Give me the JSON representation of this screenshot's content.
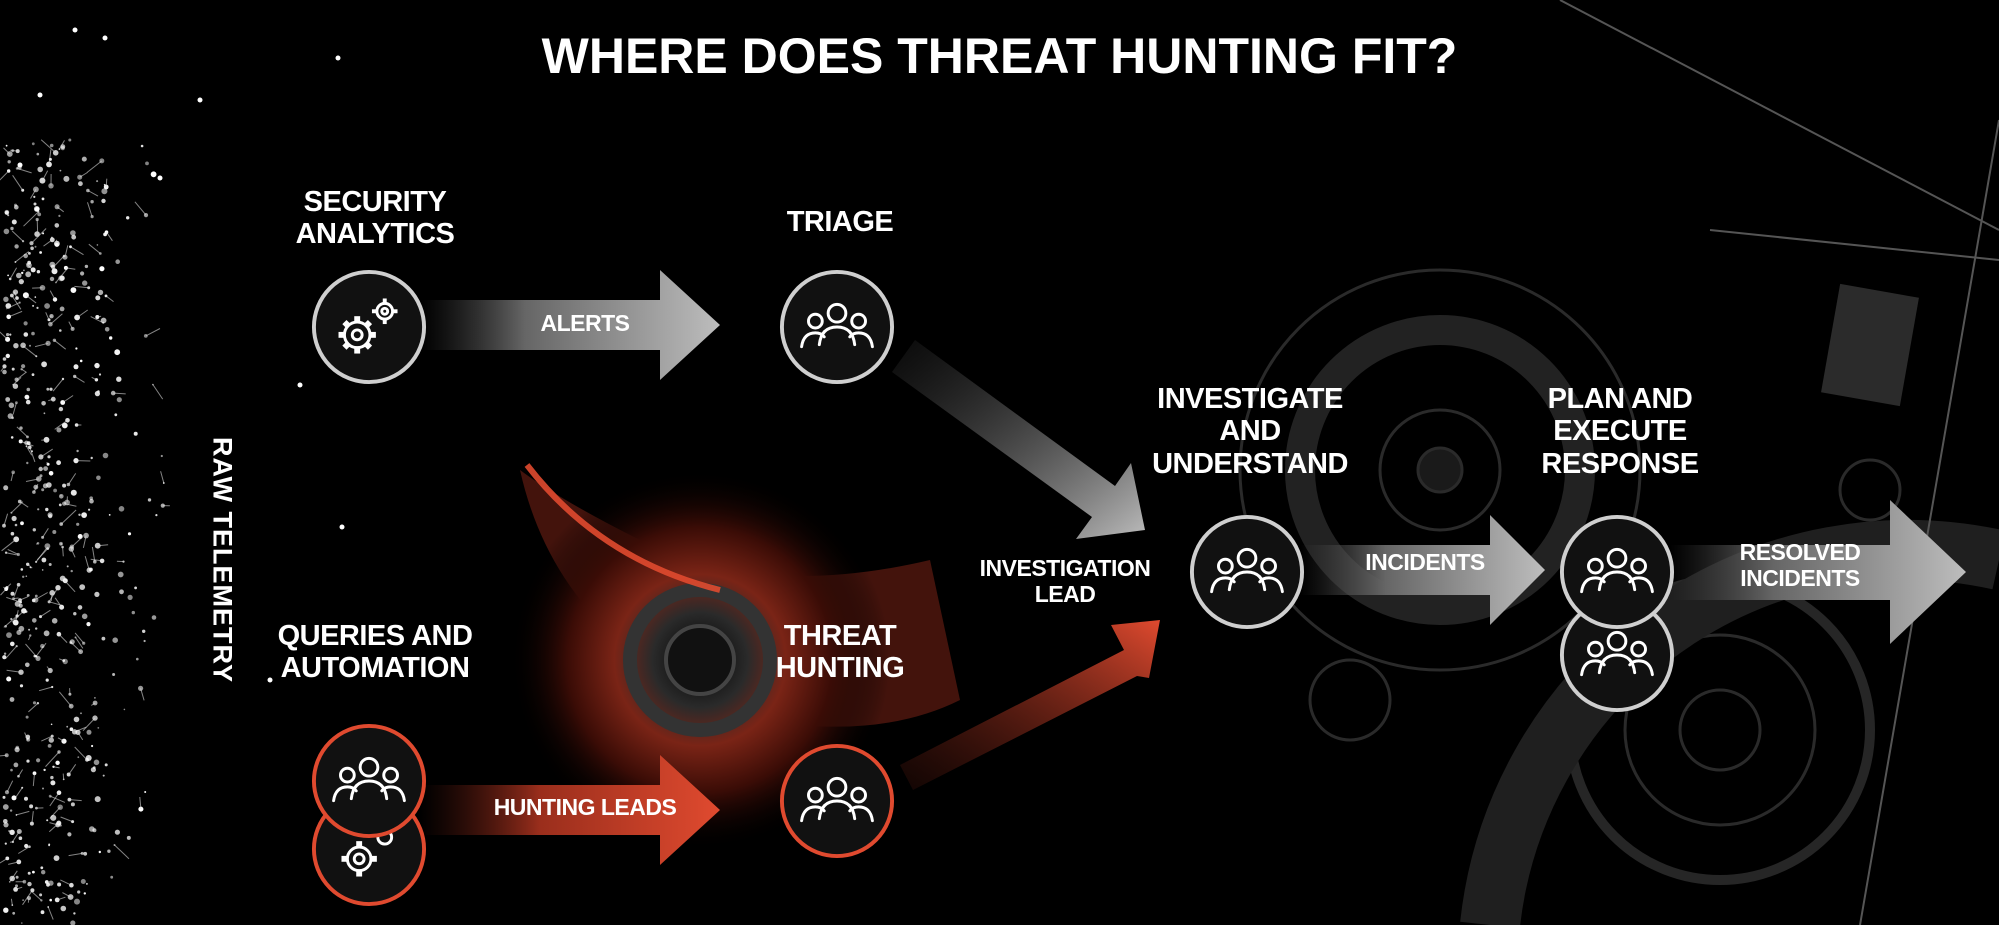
{
  "title": "WHERE DOES THREAT HUNTING FIT?",
  "side_label": "RAW TELEMETRY",
  "nodes": {
    "security_analytics": {
      "label": "SECURITY\nANALYTICS",
      "icon": "gears-icon"
    },
    "triage": {
      "label": "TRIAGE",
      "icon": "people-group-icon"
    },
    "queries_automation": {
      "label": "QUERIES AND\nAUTOMATION",
      "icon": "people-group-icon"
    },
    "threat_hunting": {
      "label": "THREAT\nHUNTING",
      "icon": "people-group-icon"
    },
    "investigate": {
      "label": "INVESTIGATE\nAND\nUNDERSTAND",
      "icon": "people-group-icon"
    },
    "plan_execute": {
      "label": "PLAN AND\nEXECUTE\nRESPONSE",
      "icon": "people-group-icon"
    }
  },
  "arrows": {
    "alerts": "ALERTS",
    "hunting_leads": "HUNTING LEADS",
    "investigation_lead": "INVESTIGATION\nLEAD",
    "incidents": "INCIDENTS",
    "resolved_incidents": "RESOLVED\nINCIDENTS"
  },
  "colors": {
    "background": "#000000",
    "accent_red": "#e04a2f",
    "node_gray_border": "#cfcfcf",
    "text": "#ffffff"
  }
}
